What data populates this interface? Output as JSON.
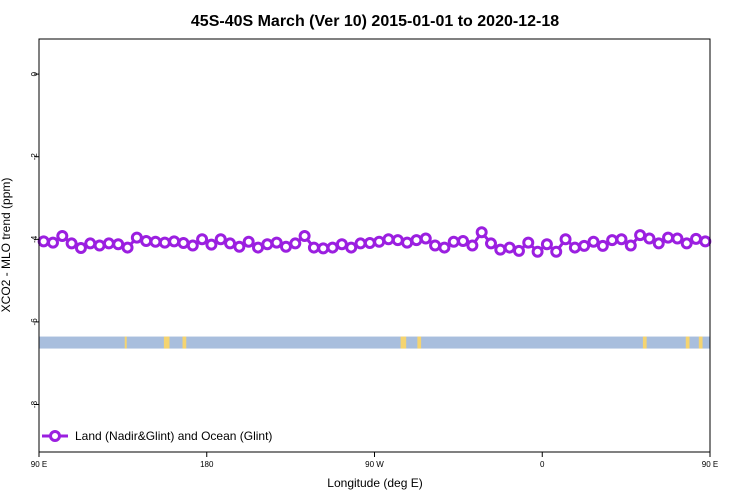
{
  "chart_data": {
    "type": "line",
    "title": "45S-40S March (Ver 10)   2015-01-01 to 2020-12-18",
    "xlabel": "Longitude (deg E)",
    "ylabel": "XCO2 - MLO trend (ppm)",
    "xlim": [
      90,
      450
    ],
    "ylim": [
      -9.15,
      0.85
    ],
    "xticks": [
      {
        "value": 90,
        "label": "90 E"
      },
      {
        "value": 180,
        "label": "180"
      },
      {
        "value": 270,
        "label": "90 W"
      },
      {
        "value": 360,
        "label": "0"
      },
      {
        "value": 450,
        "label": "90 E"
      }
    ],
    "yticks": [
      {
        "value": 0,
        "label": "0"
      },
      {
        "value": -2,
        "label": "-2"
      },
      {
        "value": -4,
        "label": "-4"
      },
      {
        "value": -6,
        "label": "-6"
      },
      {
        "value": -8,
        "label": "-8"
      }
    ],
    "series": [
      {
        "name": "Land (Nadir&Glint) and Ocean (Glint)",
        "color": "#9b1fe0",
        "x": [
          92.5,
          97.5,
          102.5,
          107.5,
          112.5,
          117.5,
          122.5,
          127.5,
          132.5,
          137.5,
          142.5,
          147.5,
          152.5,
          157.5,
          162.5,
          167.5,
          172.5,
          177.5,
          182.5,
          187.5,
          192.5,
          197.5,
          202.5,
          207.5,
          212.5,
          217.5,
          222.5,
          227.5,
          232.5,
          237.5,
          242.5,
          247.5,
          252.5,
          257.5,
          262.5,
          267.5,
          272.5,
          277.5,
          282.5,
          287.5,
          292.5,
          297.5,
          302.5,
          307.5,
          312.5,
          317.5,
          322.5,
          327.5,
          332.5,
          337.5,
          342.5,
          347.5,
          352.5,
          357.5,
          362.5,
          367.5,
          372.5,
          377.5,
          382.5,
          387.5,
          392.5,
          397.5,
          402.5,
          407.5,
          412.5,
          417.5,
          422.5,
          427.5,
          432.5,
          437.5,
          442.5,
          447.5
        ],
        "y": [
          -4.05,
          -4.08,
          -3.92,
          -4.1,
          -4.21,
          -4.1,
          -4.15,
          -4.1,
          -4.12,
          -4.2,
          -3.96,
          -4.04,
          -4.06,
          -4.08,
          -4.05,
          -4.09,
          -4.15,
          -4.0,
          -4.13,
          -4.0,
          -4.1,
          -4.18,
          -4.06,
          -4.2,
          -4.12,
          -4.08,
          -4.18,
          -4.1,
          -3.92,
          -4.2,
          -4.22,
          -4.2,
          -4.12,
          -4.2,
          -4.1,
          -4.09,
          -4.06,
          -4.0,
          -4.02,
          -4.08,
          -4.02,
          -3.98,
          -4.15,
          -4.2,
          -4.06,
          -4.04,
          -4.15,
          -3.83,
          -4.1,
          -4.25,
          -4.2,
          -4.28,
          -4.08,
          -4.3,
          -4.12,
          -4.3,
          -4.0,
          -4.2,
          -4.16,
          -4.06,
          -4.16,
          -4.02,
          -4.0,
          -4.15,
          -3.9,
          -3.98,
          -4.1,
          -3.96,
          -3.98,
          -4.1,
          -3.99,
          -4.05
        ]
      }
    ],
    "land_ocean_band": {
      "y_center": -6.5,
      "ocean_color": "#a8bedd",
      "land_color": "#f5d470",
      "land_ranges": [
        [
          136,
          137
        ],
        [
          157,
          160
        ],
        [
          167,
          169
        ],
        [
          284,
          287
        ],
        [
          293,
          295
        ],
        [
          414,
          416
        ],
        [
          437,
          439
        ],
        [
          444,
          446
        ]
      ]
    },
    "legend": {
      "position": "bottom-left",
      "label": "Land (Nadir&Glint) and Ocean (Glint)"
    },
    "grid": false
  }
}
